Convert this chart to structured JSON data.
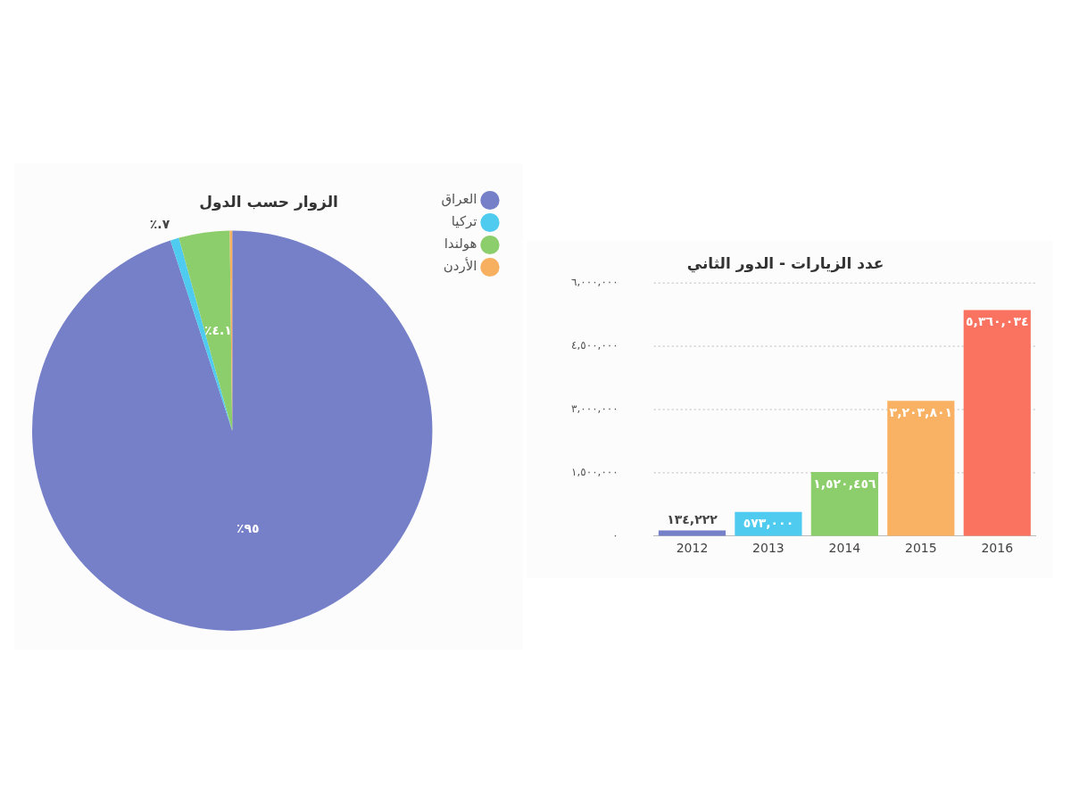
{
  "chart_data": [
    {
      "type": "pie",
      "title": "الزوار حسب الدول",
      "categories": [
        "العراق",
        "تركيا",
        "هولندا",
        "الأردن"
      ],
      "values": [
        95,
        0.7,
        4.1,
        0.2
      ],
      "colors": [
        "#7680c8",
        "#4fcbef",
        "#8dce6c",
        "#f6b060"
      ],
      "value_labels": [
        "٪٩٥",
        "٪.٧",
        "٪٤.١",
        null
      ],
      "legend": "top right"
    },
    {
      "type": "bar",
      "title": "عدد الزيارات - الدور الثاني",
      "categories": [
        "2012",
        "2013",
        "2014",
        "2015",
        "2016"
      ],
      "values": [
        134222,
        573000,
        1520456,
        3203801,
        5360034
      ],
      "colors": [
        "#7680c8",
        "#4fcbef",
        "#8dce6c",
        "#f9b263",
        "#f97360"
      ],
      "value_labels": [
        "١٣٤,٢٢٢",
        "٥٧٣,٠٠٠",
        "١,٥٢٠,٤٥٦",
        "٣,٢٠٣,٨٠١",
        "٥,٣٦٠,٠٣٤"
      ],
      "ylim": [
        0,
        6000000
      ],
      "yticks": [
        {
          "value": 0,
          "label": "٠"
        },
        {
          "value": 1500000,
          "label": "١,٥٠٠,٠٠٠"
        },
        {
          "value": 3000000,
          "label": "٣,٠٠٠,٠٠٠"
        },
        {
          "value": 4500000,
          "label": "٤,٥٠٠,٠٠٠"
        },
        {
          "value": 6000000,
          "label": "٦,٠٠٠,٠٠٠"
        }
      ],
      "grid": "y",
      "legend": false
    }
  ]
}
